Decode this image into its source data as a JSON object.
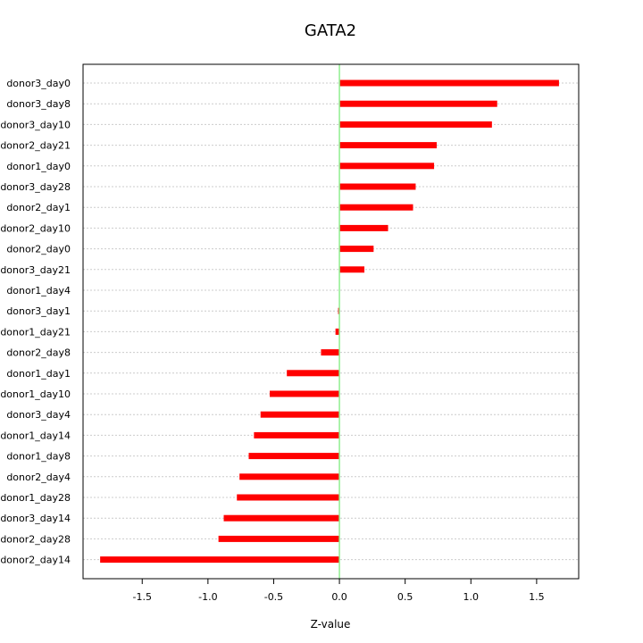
{
  "chart_data": {
    "type": "bar",
    "orientation": "horizontal",
    "title": "GATA2",
    "xlabel": "Z-value",
    "ylabel": "",
    "xlim": [
      -1.95,
      1.82
    ],
    "x_ticks": [
      -1.5,
      -1.0,
      -0.5,
      0.0,
      0.5,
      1.0,
      1.5
    ],
    "x_tick_labels": [
      "-1.5",
      "-1.0",
      "-0.5",
      "0.0",
      "0.5",
      "1.0",
      "1.5"
    ],
    "grid": true,
    "categories": [
      "donor3_day0",
      "donor3_day8",
      "donor3_day10",
      "donor2_day21",
      "donor1_day0",
      "donor3_day28",
      "donor2_day1",
      "donor2_day10",
      "donor2_day0",
      "donor3_day21",
      "donor1_day4",
      "donor3_day1",
      "donor1_day21",
      "donor2_day8",
      "donor1_day1",
      "donor1_day10",
      "donor3_day4",
      "donor1_day14",
      "donor1_day8",
      "donor2_day4",
      "donor1_day28",
      "donor3_day14",
      "donor2_day28",
      "donor2_day14"
    ],
    "values": [
      1.67,
      1.2,
      1.16,
      0.74,
      0.72,
      0.58,
      0.56,
      0.37,
      0.26,
      0.19,
      0.0,
      -0.01,
      -0.03,
      -0.14,
      -0.4,
      -0.53,
      -0.6,
      -0.65,
      -0.69,
      -0.76,
      -0.78,
      -0.88,
      -0.92,
      -1.82
    ],
    "bar_color": "#ff0000",
    "zero_line_color": "#90ee90",
    "grid_color": "#cccccc"
  }
}
